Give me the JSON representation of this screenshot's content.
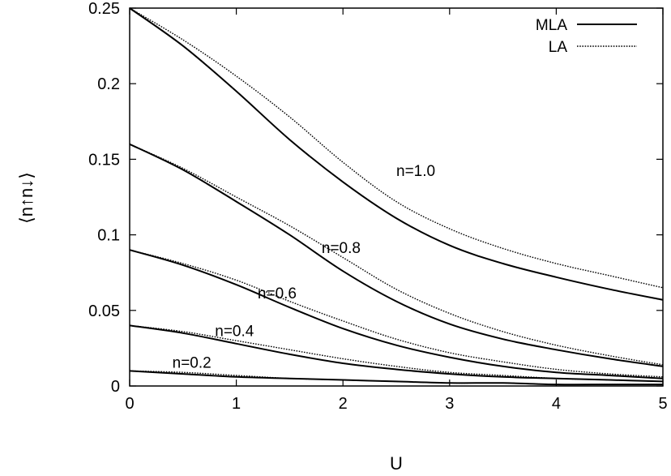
{
  "chart_data": {
    "type": "line",
    "xlabel": "U",
    "ylabel": "⟨n↑n↓⟩",
    "xlim": [
      0,
      5
    ],
    "ylim": [
      0,
      0.25
    ],
    "xticks": [
      "0",
      "1",
      "2",
      "3",
      "4",
      "5"
    ],
    "yticks": [
      "0",
      "0.05",
      "0.1",
      "0.15",
      "0.2",
      "0.25"
    ],
    "grid": false,
    "legend": {
      "position": "top-right",
      "entries": [
        {
          "label": "MLA",
          "style": "solid"
        },
        {
          "label": "LA",
          "style": "dotted"
        }
      ]
    },
    "x": [
      0,
      0.5,
      1,
      1.5,
      2,
      2.5,
      3,
      3.5,
      4,
      4.5,
      5
    ],
    "series": [
      {
        "group": "MLA",
        "style": "solid",
        "values": [
          0.25,
          0.225,
          0.195,
          0.163,
          0.135,
          0.111,
          0.093,
          0.081,
          0.072,
          0.064,
          0.057
        ]
      },
      {
        "group": "LA",
        "style": "dotted",
        "values": [
          0.25,
          0.229,
          0.205,
          0.178,
          0.148,
          0.122,
          0.104,
          0.091,
          0.081,
          0.073,
          0.065
        ]
      },
      {
        "group": "MLA",
        "style": "solid",
        "values": [
          0.16,
          0.143,
          0.122,
          0.1,
          0.076,
          0.056,
          0.041,
          0.031,
          0.024,
          0.018,
          0.013
        ]
      },
      {
        "group": "LA",
        "style": "dotted",
        "values": [
          0.16,
          0.144,
          0.125,
          0.106,
          0.085,
          0.064,
          0.048,
          0.036,
          0.027,
          0.02,
          0.014
        ]
      },
      {
        "group": "MLA",
        "style": "solid",
        "values": [
          0.09,
          0.08,
          0.067,
          0.052,
          0.038,
          0.027,
          0.019,
          0.013,
          0.009,
          0.007,
          0.005
        ]
      },
      {
        "group": "LA",
        "style": "dotted",
        "values": [
          0.09,
          0.081,
          0.07,
          0.056,
          0.043,
          0.031,
          0.022,
          0.016,
          0.011,
          0.008,
          0.006
        ]
      },
      {
        "group": "MLA",
        "style": "solid",
        "values": [
          0.04,
          0.035,
          0.028,
          0.021,
          0.015,
          0.011,
          0.008,
          0.006,
          0.005,
          0.004,
          0.003
        ]
      },
      {
        "group": "LA",
        "style": "dotted",
        "values": [
          0.04,
          0.036,
          0.03,
          0.024,
          0.018,
          0.013,
          0.009,
          0.007,
          0.005,
          0.004,
          0.003
        ]
      },
      {
        "group": "MLA",
        "style": "solid",
        "values": [
          0.01,
          0.008,
          0.006,
          0.005,
          0.004,
          0.003,
          0.002,
          0.002,
          0.001,
          0.001,
          0.001
        ]
      },
      {
        "group": "LA",
        "style": "dotted",
        "values": [
          0.01,
          0.009,
          0.007,
          0.005,
          0.004,
          0.003,
          0.002,
          0.002,
          0.001,
          0.001,
          0.001
        ]
      }
    ],
    "annotations": [
      {
        "text": "n=1.0",
        "x": 2.5,
        "y": 0.139
      },
      {
        "text": "n=0.8",
        "x": 1.8,
        "y": 0.088
      },
      {
        "text": "n=0.6",
        "x": 1.2,
        "y": 0.058
      },
      {
        "text": "n=0.4",
        "x": 0.8,
        "y": 0.033
      },
      {
        "text": "n=0.2",
        "x": 0.4,
        "y": 0.012
      }
    ]
  }
}
